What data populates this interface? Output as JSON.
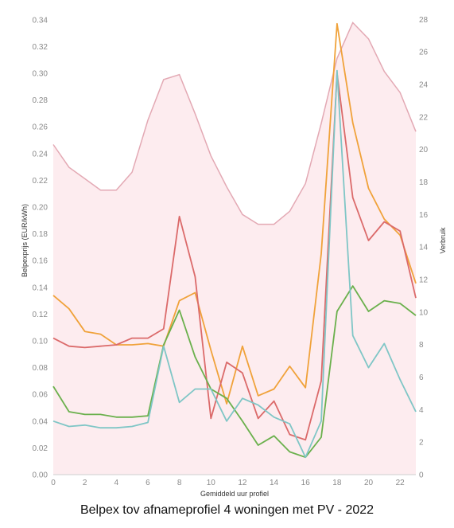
{
  "caption": "Belpex tov afnameprofiel 4 woningen met PV - 2022",
  "chart_data": {
    "type": "line",
    "xlabel": "Gemiddeld uur profiel",
    "ylabel": "Belpexprijs (EUR/kWh)",
    "y2label": "Verbruik",
    "x": [
      0,
      1,
      2,
      3,
      4,
      5,
      6,
      7,
      8,
      9,
      10,
      11,
      12,
      13,
      14,
      15,
      16,
      17,
      18,
      19,
      20,
      21,
      22,
      23
    ],
    "xticks": [
      0,
      2,
      4,
      6,
      8,
      10,
      12,
      14,
      16,
      18,
      20,
      22
    ],
    "xtick_labels": [
      "0",
      "2",
      "4",
      "6",
      "8",
      "10",
      "12",
      "14",
      "16",
      "18",
      "20",
      "22"
    ],
    "ylim": [
      0,
      0.35
    ],
    "yticks": [
      0.0,
      0.02,
      0.04,
      0.06,
      0.08,
      0.1,
      0.12,
      0.14,
      0.16,
      0.18,
      0.2,
      0.22,
      0.24,
      0.26,
      0.28,
      0.3,
      0.32,
      0.34
    ],
    "ytick_labels": [
      "0.00",
      "0.02",
      "0.04",
      "0.06",
      "0.08",
      "0.10",
      "0.12",
      "0.14",
      "0.16",
      "0.18",
      "0.20",
      "0.22",
      "0.24",
      "0.26",
      "0.28",
      "0.30",
      "0.32",
      "0.34"
    ],
    "y2lim": [
      0,
      28.8
    ],
    "y2ticks": [
      0,
      2,
      4,
      6,
      8,
      10,
      12,
      14,
      16,
      18,
      20,
      22,
      24,
      26,
      28
    ],
    "y2tick_labels": [
      "0",
      "2",
      "4",
      "6",
      "8",
      "10",
      "12",
      "14",
      "16",
      "18",
      "20",
      "22",
      "24",
      "26",
      "28"
    ],
    "grid": false,
    "area": {
      "axis": "right",
      "fill": "#fdecef",
      "stroke": "#e3a9b4",
      "values": [
        20.3,
        18.9,
        18.2,
        17.5,
        17.5,
        18.6,
        21.8,
        24.3,
        24.6,
        22.2,
        19.6,
        17.7,
        16.0,
        15.4,
        15.4,
        16.2,
        17.9,
        21.6,
        25.6,
        27.8,
        26.8,
        24.8,
        23.5,
        21.1
      ]
    },
    "series": [
      {
        "color": "#f0a23a",
        "values": [
          0.134,
          0.124,
          0.107,
          0.105,
          0.097,
          0.097,
          0.098,
          0.096,
          0.13,
          0.136,
          0.093,
          0.053,
          0.096,
          0.059,
          0.064,
          0.081,
          0.065,
          0.165,
          0.337,
          0.263,
          0.214,
          0.191,
          0.179,
          0.143
        ]
      },
      {
        "color": "#db6a6a",
        "values": [
          0.102,
          0.096,
          0.095,
          0.096,
          0.097,
          0.102,
          0.102,
          0.109,
          0.193,
          0.148,
          0.042,
          0.084,
          0.076,
          0.042,
          0.055,
          0.03,
          0.026,
          0.07,
          0.3,
          0.207,
          0.175,
          0.189,
          0.182,
          0.132
        ]
      },
      {
        "color": "#6ab04c",
        "values": [
          0.066,
          0.047,
          0.045,
          0.045,
          0.043,
          0.043,
          0.044,
          0.097,
          0.123,
          0.088,
          0.064,
          0.057,
          0.04,
          0.022,
          0.029,
          0.017,
          0.013,
          0.028,
          0.122,
          0.141,
          0.122,
          0.13,
          0.128,
          0.119
        ]
      },
      {
        "color": "#7fc6c6",
        "values": [
          0.04,
          0.036,
          0.037,
          0.035,
          0.035,
          0.036,
          0.039,
          0.096,
          0.054,
          0.064,
          0.064,
          0.04,
          0.057,
          0.052,
          0.043,
          0.038,
          0.013,
          0.04,
          0.302,
          0.104,
          0.08,
          0.098,
          0.071,
          0.047
        ]
      }
    ]
  }
}
